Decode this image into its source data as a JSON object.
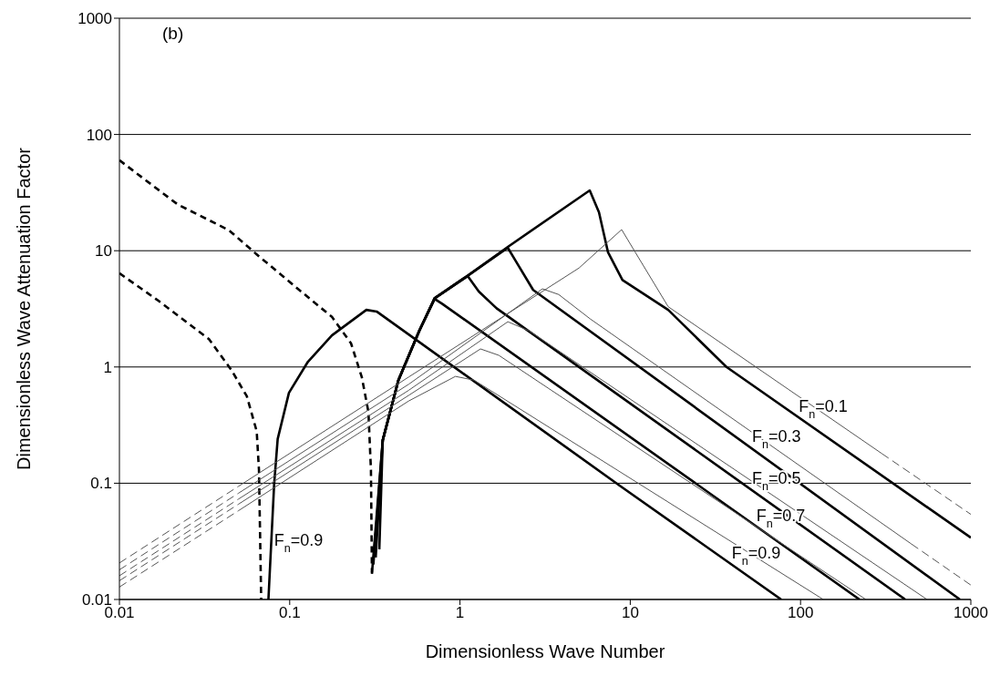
{
  "chart_data": {
    "type": "line",
    "xlabel": "Dimensionless Wave Number",
    "ylabel": "Dimensionless Wave Attenuation Factor",
    "log": "xy",
    "xlim": [
      0.01,
      1000
    ],
    "ylim": [
      0.01,
      1000
    ],
    "xticks": [
      0.01,
      0.1,
      1,
      10,
      100,
      1000
    ],
    "yticks": [
      0.01,
      0.1,
      1,
      10,
      100,
      1000
    ],
    "grid": "y",
    "annotations": [
      "(b)",
      {
        "text": "F$_{n}$=0.1",
        "x": 94,
        "y": 0.38
      },
      {
        "text": "F$_{n}$=0.3",
        "x": 50,
        "y": 0.21
      },
      {
        "text": "F$_{n}$=0.5",
        "x": 50,
        "y": 0.092
      },
      {
        "text": "F$_{n}$=0.7",
        "x": 53,
        "y": 0.044
      },
      {
        "text": "F$_{n}$=0.9",
        "x": 38,
        "y": 0.021
      },
      {
        "text": "F$_{n}$=0.9",
        "x": 0.078,
        "y": 0.027
      }
    ],
    "series": [
      {
        "color": "#000000",
        "line_style": "dashed",
        "x": [
          0.01,
          0.022,
          0.044,
          0.064,
          0.136,
          0.177,
          0.229,
          0.265,
          0.29,
          0.3,
          0.304
        ],
        "values": [
          60,
          25,
          15,
          9.3,
          3.7,
          2.7,
          1.6,
          0.82,
          0.41,
          0.13,
          0.017
        ]
      },
      {
        "color": "#000000",
        "line_style": "dashed",
        "x": [
          0.01,
          0.017,
          0.0335,
          0.0455,
          0.056,
          0.064,
          0.066,
          0.068
        ],
        "values": [
          6.4,
          3.7,
          1.74,
          0.94,
          0.56,
          0.28,
          0.13,
          0.01
        ]
      },
      {
        "color": "#000000",
        "line_style": "solid",
        "x": [
          0.075,
          0.081,
          0.085,
          0.099,
          0.128,
          0.177,
          0.282,
          0.324,
          8.7,
          77
        ],
        "values": [
          0.01,
          0.097,
          0.24,
          0.6,
          1.11,
          1.87,
          3.1,
          3.0,
          0.095,
          0.01
        ]
      },
      {
        "color": "#000000",
        "line_style": "solid",
        "x": [
          0.304,
          0.352,
          0.435,
          0.577,
          0.71,
          0.785,
          222
        ],
        "values": [
          0.0166,
          0.235,
          0.77,
          2.05,
          3.85,
          3.5,
          0.01
        ]
      },
      {
        "color": "#000000",
        "line_style": "solid",
        "x": [
          0.31,
          0.352,
          0.435,
          0.577,
          0.71,
          1.11,
          1.29,
          1.64,
          412
        ],
        "values": [
          0.02,
          0.235,
          0.77,
          2.05,
          3.9,
          6.05,
          4.46,
          3.2,
          0.01
        ]
      },
      {
        "color": "#000000",
        "line_style": "solid",
        "x": [
          0.32,
          0.352,
          0.435,
          0.577,
          0.71,
          1.11,
          1.91,
          2.1,
          2.69,
          863
        ],
        "values": [
          0.023,
          0.235,
          0.77,
          2.05,
          3.9,
          6.1,
          10.6,
          8.4,
          4.6,
          0.01
        ]
      },
      {
        "color": "#000000",
        "line_style": "solid",
        "x": [
          0.336,
          0.352,
          0.435,
          0.577,
          0.71,
          1.11,
          1.91,
          5.78,
          6.55,
          7.4,
          9.0,
          16.7,
          36.7,
          1000
        ],
        "values": [
          0.027,
          0.235,
          0.77,
          2.05,
          3.9,
          6.1,
          10.8,
          33,
          21.4,
          9.7,
          5.6,
          3.1,
          1.0,
          0.034
        ]
      },
      {
        "color": "#555555",
        "line_style": "dashed",
        "x": [
          0.01,
          0.05
        ],
        "values": [
          0.0206,
          0.094
        ]
      },
      {
        "color": "#555555",
        "line_style": "solid",
        "x": [
          0.05,
          0.5,
          5,
          8.9,
          10.7,
          16.7,
          300
        ],
        "values": [
          0.094,
          0.82,
          7.1,
          15.2,
          9.7,
          3.3,
          0.18
        ]
      },
      {
        "color": "#555555",
        "line_style": "dashed",
        "x": [
          300,
          1000
        ],
        "values": [
          0.18,
          0.054
        ]
      },
      {
        "color": "#555555",
        "line_style": "dashed",
        "x": [
          0.01,
          0.05
        ],
        "values": [
          0.018,
          0.082
        ]
      },
      {
        "color": "#555555",
        "line_style": "solid",
        "x": [
          0.05,
          0.5,
          3.05,
          3.8,
          5.8,
          448
        ],
        "values": [
          0.082,
          0.71,
          4.7,
          4.2,
          2.6,
          0.03
        ]
      },
      {
        "color": "#555555",
        "line_style": "dashed",
        "x": [
          448,
          1000
        ],
        "values": [
          0.03,
          0.0133
        ]
      },
      {
        "color": "#555555",
        "line_style": "dashed",
        "x": [
          0.01,
          0.05
        ],
        "values": [
          0.016,
          0.073
        ]
      },
      {
        "color": "#555555",
        "line_style": "solid",
        "x": [
          0.05,
          0.5,
          1.91,
          2.54,
          553
        ],
        "values": [
          0.073,
          0.63,
          2.45,
          2.05,
          0.01
        ]
      },
      {
        "color": "#555555",
        "line_style": "dashed",
        "x": [
          0.01,
          0.05
        ],
        "values": [
          0.0145,
          0.066
        ]
      },
      {
        "color": "#555555",
        "line_style": "solid",
        "x": [
          0.05,
          0.5,
          1.32,
          1.69,
          242
        ],
        "values": [
          0.066,
          0.57,
          1.43,
          1.26,
          0.01
        ]
      },
      {
        "color": "#555555",
        "line_style": "dashed",
        "x": [
          0.01,
          0.05
        ],
        "values": [
          0.0128,
          0.058
        ]
      },
      {
        "color": "#555555",
        "line_style": "solid",
        "x": [
          0.05,
          0.5,
          0.94,
          1.21,
          136
        ],
        "values": [
          0.058,
          0.51,
          0.83,
          0.77,
          0.01
        ]
      }
    ]
  }
}
